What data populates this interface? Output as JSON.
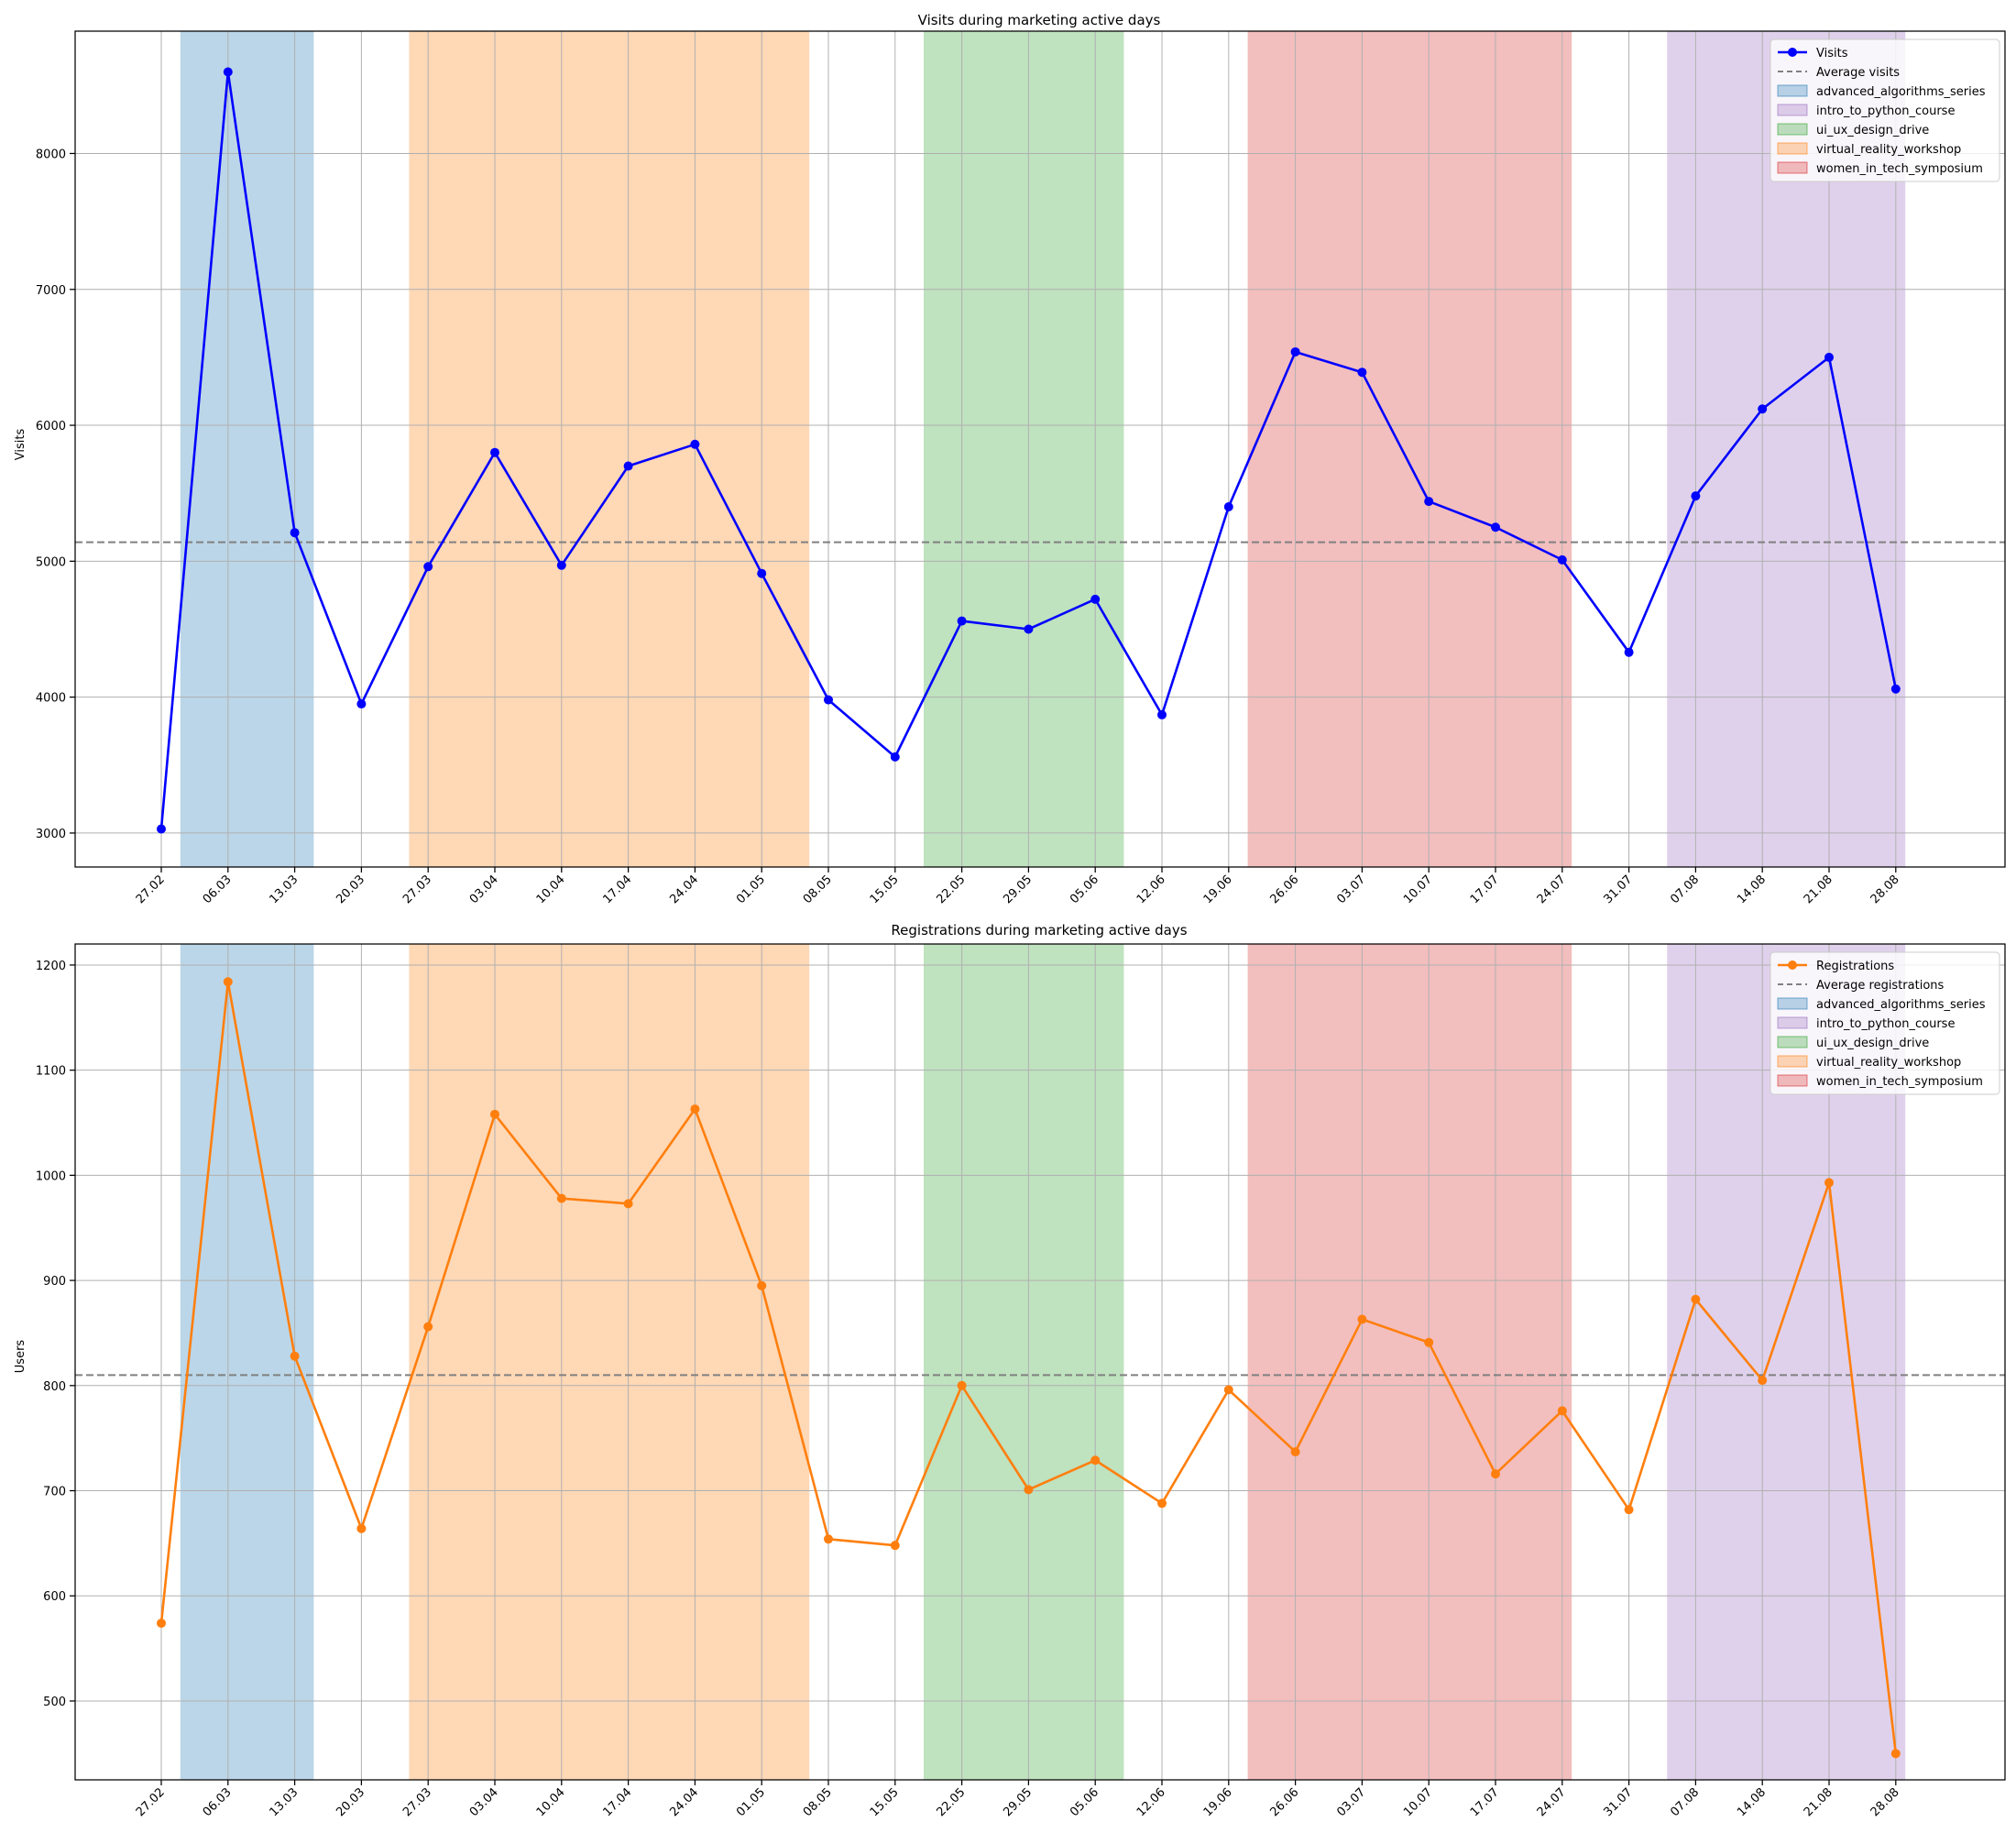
{
  "chart_data": [
    {
      "type": "line",
      "title": "Visits during marketing active days",
      "xlabel": "",
      "ylabel": "Visits",
      "ylim": [
        2750,
        8900
      ],
      "yticks": [
        3000,
        4000,
        5000,
        6000,
        7000,
        8000
      ],
      "categories": [
        "27.02",
        "06.03",
        "13.03",
        "20.03",
        "27.03",
        "03.04",
        "10.04",
        "17.04",
        "24.04",
        "01.05",
        "08.05",
        "15.05",
        "22.05",
        "29.05",
        "05.06",
        "12.06",
        "19.06",
        "26.06",
        "03.07",
        "10.07",
        "17.07",
        "24.07",
        "31.07",
        "07.08",
        "14.08",
        "21.08",
        "28.08"
      ],
      "series": [
        {
          "name": "Visits",
          "color": "#0000ff",
          "values": [
            3030,
            8600,
            5210,
            3950,
            4960,
            5800,
            4970,
            5700,
            5860,
            4910,
            3980,
            3560,
            4560,
            4500,
            4720,
            3870,
            5400,
            6540,
            6390,
            5440,
            5250,
            5010,
            4330,
            5480,
            6120,
            6500,
            4060
          ]
        }
      ],
      "average": {
        "name": "Average visits",
        "value": 5140,
        "color": "#808080"
      },
      "campaigns": [
        {
          "name": "advanced_algorithms_series",
          "color": "#1f77b4",
          "start": "01.03",
          "end": "15.03"
        },
        {
          "name": "intro_to_python_course",
          "color": "#9467bd",
          "start": "04.08",
          "end": "29.08"
        },
        {
          "name": "ui_ux_design_drive",
          "color": "#2ca02c",
          "start": "18.05",
          "end": "08.06"
        },
        {
          "name": "virtual_reality_workshop",
          "color": "#ff7f0e",
          "start": "25.03",
          "end": "06.05"
        },
        {
          "name": "women_in_tech_symposium",
          "color": "#d62728",
          "start": "21.06",
          "end": "25.07"
        }
      ],
      "grid": true,
      "legend_position": "upper right"
    },
    {
      "type": "line",
      "title": "Registrations during marketing active days",
      "xlabel": "",
      "ylabel": "Users",
      "ylim": [
        425,
        1220
      ],
      "yticks": [
        500,
        600,
        700,
        800,
        900,
        1000,
        1100,
        1200
      ],
      "categories": [
        "27.02",
        "06.03",
        "13.03",
        "20.03",
        "27.03",
        "03.04",
        "10.04",
        "17.04",
        "24.04",
        "01.05",
        "08.05",
        "15.05",
        "22.05",
        "29.05",
        "05.06",
        "12.06",
        "19.06",
        "26.06",
        "03.07",
        "10.07",
        "17.07",
        "24.07",
        "31.07",
        "07.08",
        "14.08",
        "21.08",
        "28.08"
      ],
      "series": [
        {
          "name": "Registrations",
          "color": "#ff7f0e",
          "values": [
            574,
            1184,
            828,
            664,
            856,
            1058,
            978,
            973,
            1063,
            895,
            654,
            648,
            800,
            701,
            729,
            688,
            796,
            737,
            863,
            841,
            716,
            776,
            682,
            882,
            805,
            993,
            450
          ]
        }
      ],
      "average": {
        "name": "Average registrations",
        "value": 810,
        "color": "#808080"
      },
      "campaigns": [
        {
          "name": "advanced_algorithms_series",
          "color": "#1f77b4",
          "start": "01.03",
          "end": "15.03"
        },
        {
          "name": "intro_to_python_course",
          "color": "#9467bd",
          "start": "04.08",
          "end": "29.08"
        },
        {
          "name": "ui_ux_design_drive",
          "color": "#2ca02c",
          "start": "18.05",
          "end": "08.06"
        },
        {
          "name": "virtual_reality_workshop",
          "color": "#ff7f0e",
          "start": "25.03",
          "end": "06.05"
        },
        {
          "name": "women_in_tech_symposium",
          "color": "#d62728",
          "start": "21.06",
          "end": "25.07"
        }
      ],
      "grid": true,
      "legend_position": "upper right"
    }
  ]
}
